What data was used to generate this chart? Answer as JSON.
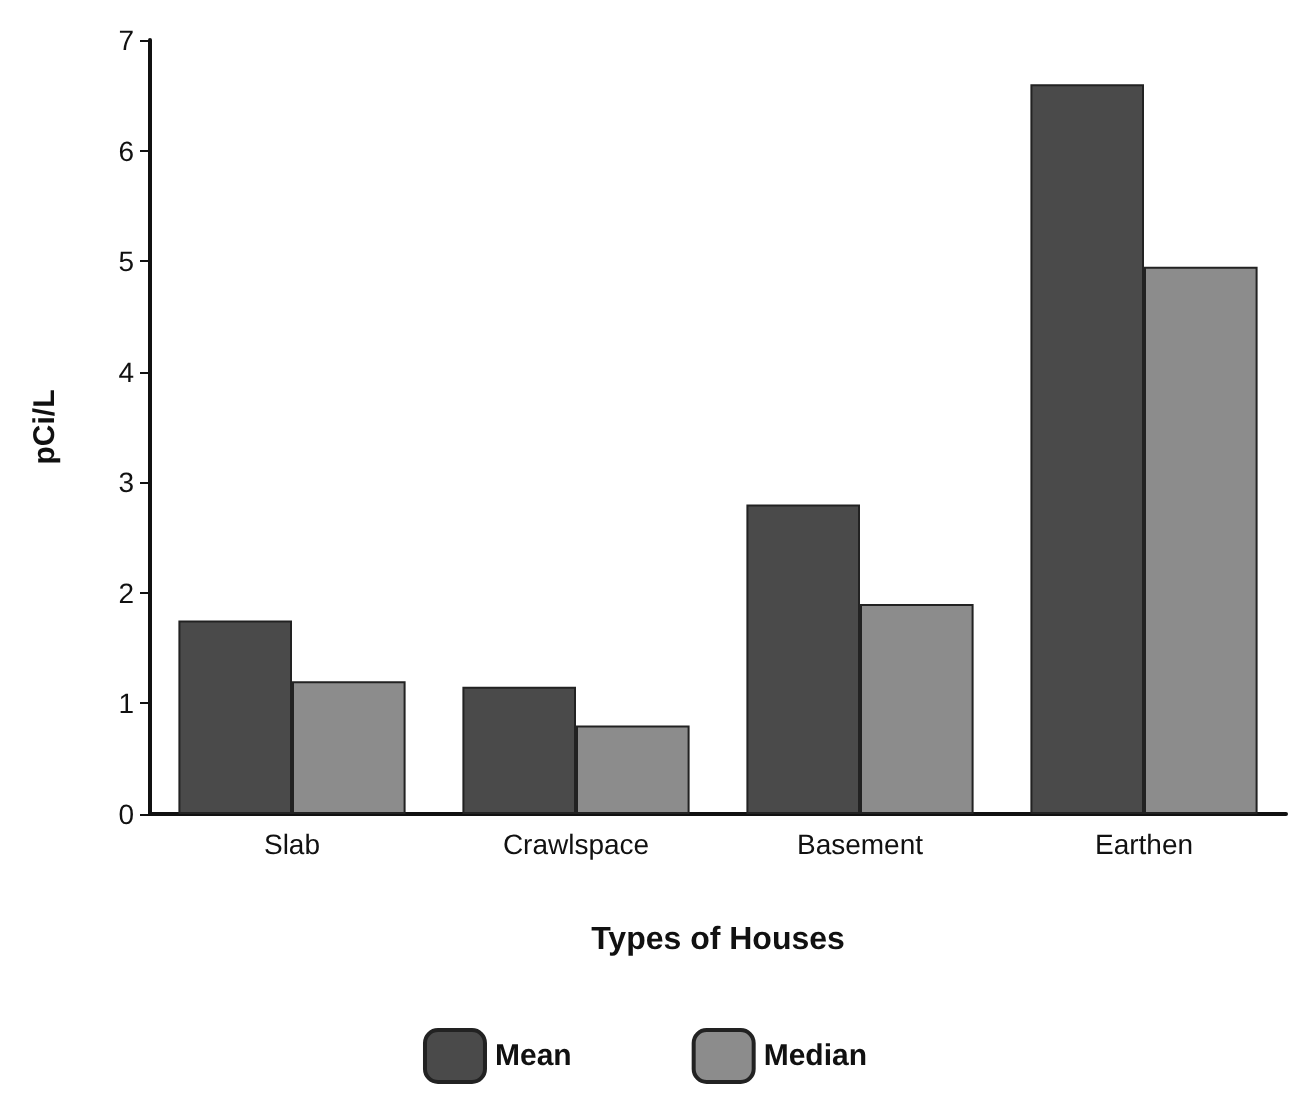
{
  "chart_data": {
    "type": "bar",
    "xlabel": "Types of Houses",
    "ylabel": "pCi/L",
    "categories": [
      "Slab",
      "Crawlspace",
      "Basement",
      "Earthen"
    ],
    "series": [
      {
        "name": "Mean",
        "color": "#4a4a4a",
        "values": [
          1.75,
          1.15,
          2.8,
          6.6
        ]
      },
      {
        "name": "Median",
        "color": "#8c8c8c",
        "values": [
          1.2,
          0.8,
          1.9,
          4.95
        ]
      }
    ],
    "ylim": [
      0,
      7
    ],
    "yticks": [
      0,
      1,
      2,
      3,
      4,
      5,
      6,
      7
    ],
    "grid": false,
    "legend": "bottom"
  }
}
